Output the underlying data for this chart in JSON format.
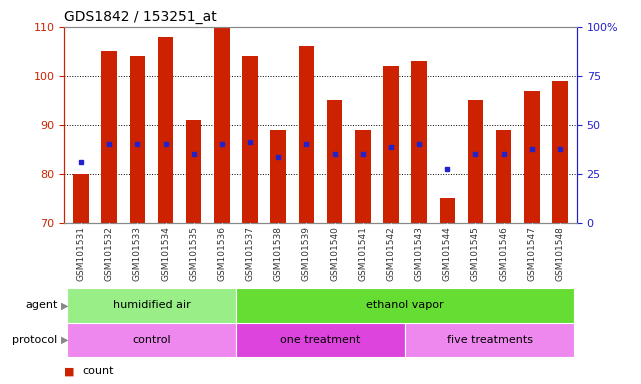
{
  "title": "GDS1842 / 153251_at",
  "samples": [
    "GSM101531",
    "GSM101532",
    "GSM101533",
    "GSM101534",
    "GSM101535",
    "GSM101536",
    "GSM101537",
    "GSM101538",
    "GSM101539",
    "GSM101540",
    "GSM101541",
    "GSM101542",
    "GSM101543",
    "GSM101544",
    "GSM101545",
    "GSM101546",
    "GSM101547",
    "GSM101548"
  ],
  "bar_top": [
    80,
    105,
    104,
    108,
    91,
    110,
    104,
    89,
    106,
    95,
    89,
    102,
    103,
    75,
    95,
    89,
    97,
    99
  ],
  "bar_bottom": [
    70,
    70,
    70,
    70,
    70,
    70,
    70,
    70,
    70,
    70,
    70,
    70,
    70,
    70,
    70,
    70,
    70,
    70
  ],
  "percentile_y": [
    82.5,
    86,
    86,
    86,
    84,
    86,
    86.5,
    83.5,
    86,
    84,
    84,
    85.5,
    86,
    81,
    84,
    84,
    85,
    85
  ],
  "ylim": [
    70,
    110
  ],
  "yticks": [
    70,
    80,
    90,
    100,
    110
  ],
  "right_ytick_vals": [
    0,
    25,
    50,
    75,
    100
  ],
  "right_ytick_labels": [
    "0",
    "25",
    "50",
    "75",
    "100%"
  ],
  "bar_color": "#CC2200",
  "percentile_color": "#2222CC",
  "plot_bg_color": "#FFFFFF",
  "agent_groups": [
    {
      "label": "humidified air",
      "start": 0,
      "end": 6,
      "color": "#99EE88"
    },
    {
      "label": "ethanol vapor",
      "start": 6,
      "end": 18,
      "color": "#66DD33"
    }
  ],
  "protocol_groups": [
    {
      "label": "control",
      "start": 0,
      "end": 6,
      "color": "#EE88EE"
    },
    {
      "label": "one treatment",
      "start": 6,
      "end": 12,
      "color": "#DD44DD"
    },
    {
      "label": "five treatments",
      "start": 12,
      "end": 18,
      "color": "#EE88EE"
    }
  ],
  "legend_count_color": "#CC2200",
  "legend_percentile_color": "#2222CC",
  "left_axis_color": "#CC2200",
  "right_axis_color": "#2222CC"
}
